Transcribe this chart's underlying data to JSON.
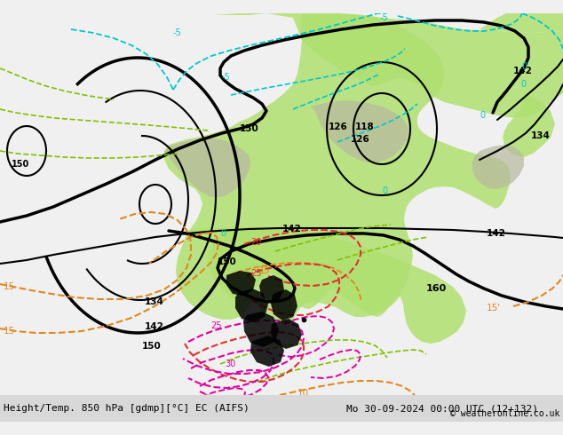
{
  "title_left": "Height/Temp. 850 hPa [gdmp][°C] EC (AIFS)",
  "title_right": "Mo 30-09-2024 00:00 UTC (12+132)",
  "copyright": "© weatheronline.co.uk",
  "bg_color": "#f0f0f0",
  "map_bg": "#e8e8e8",
  "figsize": [
    6.34,
    4.9
  ],
  "dpi": 100,
  "green": "#b0e070",
  "gray": "#b0b0b0",
  "black": "#000000",
  "cyan": "#00c8c8",
  "green_dash": "#80c000",
  "orange": "#e08820",
  "red": "#e03030",
  "magenta": "#e000a0"
}
